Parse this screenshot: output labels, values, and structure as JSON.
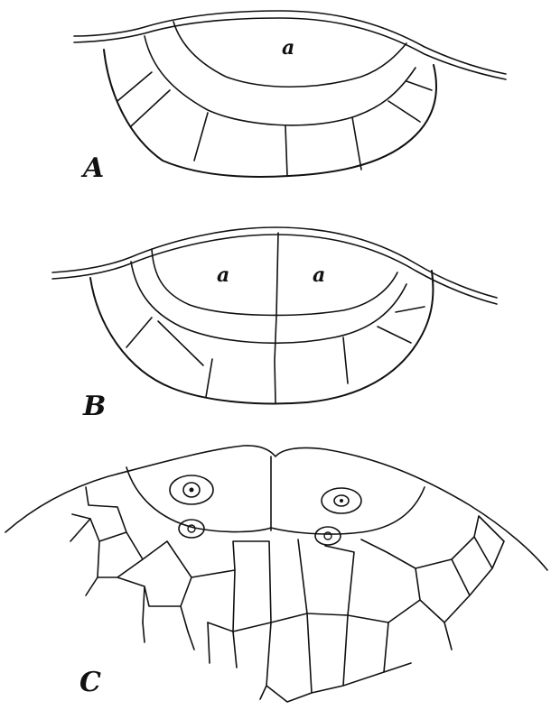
{
  "figure": {
    "panels": [
      {
        "id": "A",
        "label": "A",
        "cell_labels": [
          "a"
        ]
      },
      {
        "id": "B",
        "label": "B",
        "cell_labels": [
          "a",
          "a"
        ]
      },
      {
        "id": "C",
        "label": "C",
        "cell_labels": []
      }
    ]
  }
}
